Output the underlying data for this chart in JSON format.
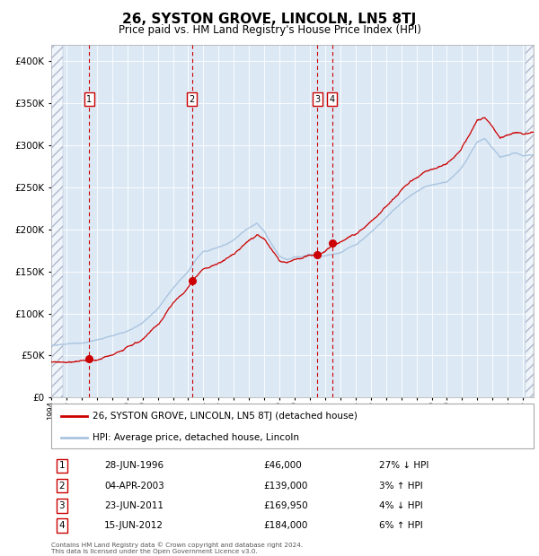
{
  "title": "26, SYSTON GROVE, LINCOLN, LN5 8TJ",
  "subtitle": "Price paid vs. HM Land Registry's House Price Index (HPI)",
  "footer_line1": "Contains HM Land Registry data © Crown copyright and database right 2024.",
  "footer_line2": "This data is licensed under the Open Government Licence v3.0.",
  "legend_label_red": "26, SYSTON GROVE, LINCOLN, LN5 8TJ (detached house)",
  "legend_label_blue": "HPI: Average price, detached house, Lincoln",
  "transactions": [
    {
      "num": 1,
      "date": "28-JUN-1996",
      "price": 46000,
      "price_str": "£46,000",
      "hpi_str": "27% ↓ HPI",
      "year": 1996.49
    },
    {
      "num": 2,
      "date": "04-APR-2003",
      "price": 139000,
      "price_str": "£139,000",
      "hpi_str": "3% ↑ HPI",
      "year": 2003.26
    },
    {
      "num": 3,
      "date": "23-JUN-2011",
      "price": 169950,
      "price_str": "£169,950",
      "hpi_str": "4% ↓ HPI",
      "year": 2011.48
    },
    {
      "num": 4,
      "date": "15-JUN-2012",
      "price": 184000,
      "price_str": "£184,000",
      "hpi_str": "6% ↑ HPI",
      "year": 2012.46
    }
  ],
  "hpi_color": "#aac4e0",
  "price_color": "#cc0000",
  "bg_color": "#dce9f5",
  "ylim": [
    0,
    420000
  ],
  "xlim_start": 1994.0,
  "xlim_end": 2025.7,
  "ytick_values": [
    0,
    50000,
    100000,
    150000,
    200000,
    250000,
    300000,
    350000,
    400000
  ],
  "hpi_waypoints_x": [
    1994.0,
    1995.0,
    1996.0,
    1997.0,
    1998.0,
    1999.0,
    2000.0,
    2001.0,
    2002.0,
    2003.0,
    2003.5,
    2004.0,
    2005.0,
    2006.0,
    2007.0,
    2007.5,
    2008.0,
    2008.5,
    2009.0,
    2009.5,
    2010.0,
    2010.5,
    2011.0,
    2011.5,
    2012.0,
    2013.0,
    2014.0,
    2015.0,
    2016.0,
    2017.0,
    2018.0,
    2019.0,
    2020.0,
    2021.0,
    2021.5,
    2022.0,
    2022.5,
    2023.0,
    2023.5,
    2024.0,
    2024.5,
    2025.0,
    2025.7
  ],
  "hpi_waypoints_y": [
    62000,
    63000,
    64000,
    67000,
    72000,
    78000,
    87000,
    103000,
    128000,
    148000,
    162000,
    172000,
    178000,
    185000,
    200000,
    205000,
    196000,
    180000,
    167000,
    163000,
    168000,
    168000,
    172000,
    170000,
    170000,
    174000,
    184000,
    198000,
    215000,
    232000,
    245000,
    253000,
    257000,
    275000,
    290000,
    305000,
    308000,
    296000,
    285000,
    287000,
    290000,
    287000,
    288000
  ]
}
